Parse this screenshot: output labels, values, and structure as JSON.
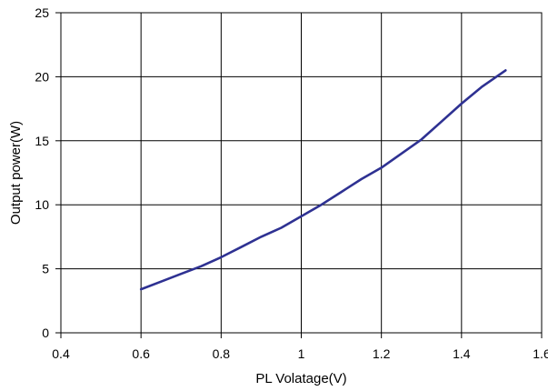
{
  "chart_data": {
    "type": "line",
    "title": "",
    "xlabel": "PL Volatage(V)",
    "ylabel": "Output power(W)",
    "xlim": [
      0.4,
      1.6
    ],
    "ylim": [
      0,
      25
    ],
    "xticks": [
      "0.4",
      "0.6",
      "0.8",
      "1",
      "1.2",
      "1.4",
      "1.6"
    ],
    "yticks": [
      "0",
      "5",
      "10",
      "15",
      "20",
      "25"
    ],
    "grid": true,
    "legend": "none",
    "series": [
      {
        "color": "#2e3192",
        "x": [
          0.6,
          0.65,
          0.7,
          0.75,
          0.8,
          0.85,
          0.9,
          0.95,
          1.0,
          1.05,
          1.1,
          1.15,
          1.2,
          1.25,
          1.3,
          1.35,
          1.4,
          1.45,
          1.51
        ],
        "y": [
          3.4,
          4.0,
          4.6,
          5.2,
          5.9,
          6.7,
          7.5,
          8.2,
          9.1,
          10.0,
          11.0,
          12.0,
          12.9,
          14.0,
          15.1,
          16.5,
          17.9,
          19.2,
          20.5
        ]
      }
    ]
  }
}
